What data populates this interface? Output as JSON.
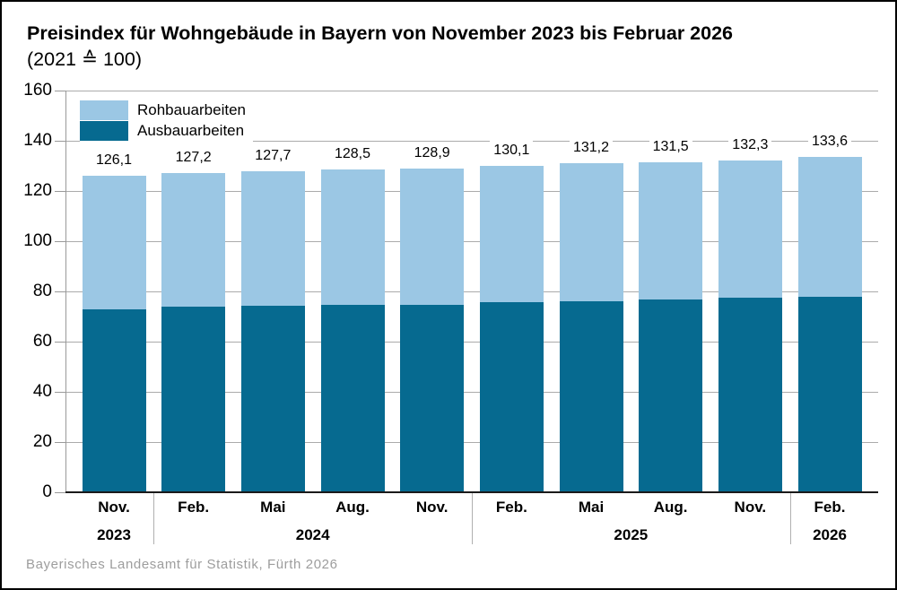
{
  "title": "Preisindex für Wohngebäude in Bayern von November 2023 bis Februar 2026",
  "subtitle": "(2021 ≙ 100)",
  "source": "Bayerisches Landesamt für Statistik, Fürth 2026",
  "chart_data": {
    "type": "bar",
    "stacked": true,
    "categories": [
      "Nov.",
      "Feb.",
      "Mai",
      "Aug.",
      "Nov.",
      "Feb.",
      "Mai",
      "Aug.",
      "Nov.",
      "Feb."
    ],
    "year_groups": [
      {
        "label": "2023",
        "span": 1
      },
      {
        "label": "2024",
        "span": 4
      },
      {
        "label": "2025",
        "span": 4
      },
      {
        "label": "2026",
        "span": 1
      }
    ],
    "series": [
      {
        "name": "Rohbauarbeiten",
        "color": "#9bc7e4",
        "values": [
          53.4,
          53.3,
          53.3,
          53.9,
          54.1,
          54.4,
          55.2,
          54.8,
          54.9,
          55.9
        ]
      },
      {
        "name": "Ausbauarbeiten",
        "color": "#066a90",
        "values": [
          72.7,
          73.9,
          74.4,
          74.6,
          74.8,
          75.7,
          76.0,
          76.7,
          77.4,
          77.7
        ]
      }
    ],
    "totals": [
      126.1,
      127.2,
      127.7,
      128.5,
      128.9,
      130.1,
      131.2,
      131.5,
      132.3,
      133.6
    ],
    "total_labels": [
      "126,1",
      "127,2",
      "127,7",
      "128,5",
      "128,9",
      "130,1",
      "131,2",
      "131,5",
      "132,3",
      "133,6"
    ],
    "ylim": [
      0,
      160
    ],
    "ytick_step": 20,
    "grid": true,
    "legend_position": "top-left"
  }
}
